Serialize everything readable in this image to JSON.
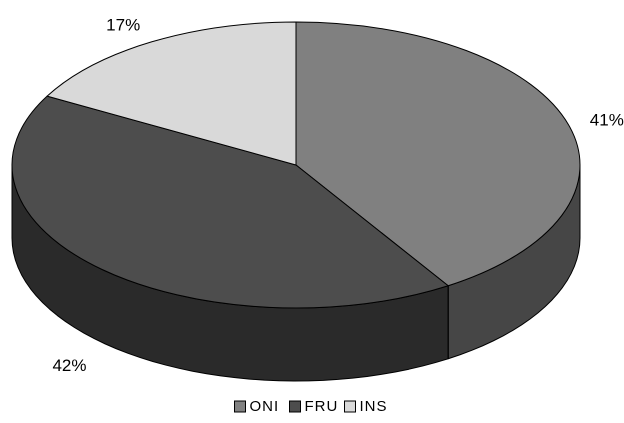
{
  "chart_data": {
    "type": "pie",
    "title": "",
    "series": [
      {
        "name": "ONI",
        "value": 41,
        "label": "41%",
        "color": "#808080"
      },
      {
        "name": "FRU",
        "value": 42,
        "label": "42%",
        "color": "#4d4d4d"
      },
      {
        "name": "INS",
        "value": 17,
        "label": "17%",
        "color": "#d9d9d9"
      }
    ],
    "style": "3d",
    "legend": {
      "position": "bottom"
    }
  }
}
